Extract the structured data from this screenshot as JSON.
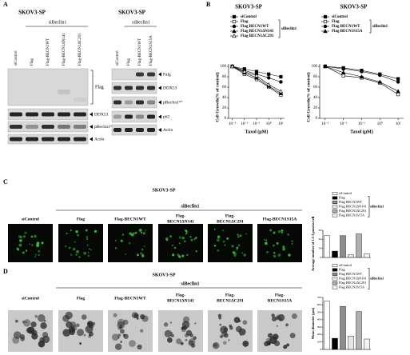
{
  "panel_labels": [
    "A",
    "B",
    "C",
    "D"
  ],
  "panel_a": {
    "blots": [
      {
        "title": "SKOV3-SP",
        "group": "siBeclin1",
        "lanes": [
          "siControl",
          "Flag",
          "Flag-BECN1WT",
          "Flag-BECN1ΔN141",
          "Flag-BECN1ΔC291"
        ],
        "rows": [
          "Flag",
          "DDX53",
          "pBeclin1ˢ¹⁵",
          "Actin"
        ]
      },
      {
        "title": "SKOV3-SP",
        "group": "siBeclin1",
        "lanes": [
          "siControl",
          "Flag",
          "Flag-BECN1WT",
          "Flag-BECN1S15A"
        ],
        "rows": [
          "Falg",
          "DDX53",
          "pBeclin1ˢ¹⁵",
          "p62",
          "Actin"
        ]
      }
    ]
  },
  "panel_c": {
    "title": "SKOV3-SP",
    "group": "siBeclin1",
    "images": [
      [
        "siControl"
      ],
      [
        "Flag"
      ],
      [
        "Flag-BECN1WT"
      ],
      [
        "Flag-",
        "BECN1ΔN141"
      ],
      [
        "Flag-",
        "BECN1ΔC291"
      ],
      [
        "Flag-BECN1S15A"
      ]
    ]
  },
  "panel_d": {
    "title": "SKOV3-SP",
    "group": "siBeclin1",
    "images": [
      [
        "siControl"
      ],
      [
        "Flag"
      ],
      [
        "Flag-BECN1WT"
      ],
      [
        "Flag-",
        "BECN1ΔN141"
      ],
      [
        "Flag-",
        "BECN1ΔC291"
      ],
      [
        "Flag-",
        "BECN1S15A"
      ]
    ]
  },
  "chart_data": [
    {
      "type": "line",
      "title": "SKOV3-SP",
      "xscale": "log",
      "x": [
        0.001,
        0.01,
        0.1,
        1,
        10
      ],
      "xlim": [
        0.0005,
        20
      ],
      "xticks": [
        {
          "value": 0.001,
          "label": "10⁻³"
        },
        {
          "value": 0.01,
          "label": "10⁻²"
        },
        {
          "value": 0.1,
          "label": "10⁻¹"
        },
        {
          "value": 1,
          "label": "10⁰"
        },
        {
          "value": 10,
          "label": "10¹"
        }
      ],
      "ylim": [
        0,
        100
      ],
      "yticks": [
        0,
        20,
        40,
        60,
        80,
        100
      ],
      "xlabel": "Taxol (μM)",
      "ylabel": "Cell Growth(% of control)",
      "legend_group": "siBeclin1",
      "series": [
        {
          "name": "siControl",
          "marker": "square",
          "filled": true,
          "color": "#000000",
          "values": [
            100,
            95,
            90,
            85,
            80
          ]
        },
        {
          "name": "Flag",
          "marker": "square",
          "filled": false,
          "color": "#000000",
          "values": [
            100,
            85,
            75,
            60,
            45
          ]
        },
        {
          "name": "Flag BECN1WT",
          "marker": "circle",
          "filled": true,
          "color": "#000000",
          "values": [
            100,
            92,
            85,
            78,
            70
          ]
        },
        {
          "name": "Flag BECN1ΔN141",
          "marker": "triangle",
          "filled": true,
          "color": "#000000",
          "values": [
            100,
            88,
            78,
            62,
            48
          ]
        },
        {
          "name": "Flag BECN1ΔC291",
          "marker": "triangle",
          "filled": false,
          "color": "#000000",
          "values": [
            100,
            90,
            82,
            65,
            52
          ]
        }
      ]
    },
    {
      "type": "line",
      "title": "SKOV3-SP",
      "xscale": "log",
      "x": [
        0.001,
        0.01,
        0.1,
        1,
        10
      ],
      "xlim": [
        0.0005,
        20
      ],
      "xticks": [
        {
          "value": 0.001,
          "label": "10⁻³"
        },
        {
          "value": 0.01,
          "label": "10⁻²"
        },
        {
          "value": 0.1,
          "label": "10⁻¹"
        },
        {
          "value": 1,
          "label": "10⁰"
        },
        {
          "value": 10,
          "label": "10¹"
        }
      ],
      "ylim": [
        0,
        100
      ],
      "yticks": [
        0,
        20,
        40,
        60,
        80,
        100
      ],
      "xlabel": "Taxol (μM)",
      "ylabel": "Cell Growth(% of control)",
      "legend_group": "siBeclin1",
      "series": [
        {
          "name": "siControl",
          "marker": "square",
          "filled": true,
          "color": "#000000",
          "values": [
            100,
            97,
            92,
            85,
            76
          ]
        },
        {
          "name": "Flag",
          "marker": "square",
          "filled": false,
          "color": "#000000",
          "values": [
            100,
            82,
            78,
            68,
            46
          ]
        },
        {
          "name": "Flag BECN1WT",
          "marker": "circle",
          "filled": true,
          "color": "#000000",
          "values": [
            100,
            95,
            90,
            83,
            70
          ]
        },
        {
          "name": "Flag BECN1S15A",
          "marker": "triangle",
          "filled": true,
          "color": "#000000",
          "values": [
            100,
            88,
            80,
            70,
            52
          ]
        }
      ]
    },
    {
      "type": "bar",
      "ylabel": "Average number of LC3 puncta/cell",
      "legend_group": "siBeclin1",
      "categories": [
        "siControl",
        "Flag",
        "Flag BECN1WT",
        "Flag BECN1ΔN141",
        "Flag BECN1ΔC291",
        "Flag BECN1S15A"
      ],
      "values": [
        24,
        7,
        24,
        3,
        26,
        4
      ],
      "colors": [
        "#ffffff",
        "#000000",
        "#8c8c8c",
        "#e6e6e6",
        "#b0b0b0",
        "#f2f2f2"
      ],
      "ylim": [
        0,
        30
      ],
      "yticks": [
        0,
        10,
        20,
        30
      ]
    },
    {
      "type": "bar",
      "ylabel": "Mean diameter (μm)",
      "legend_group": "siBeclin1",
      "categories": [
        "siControl",
        "Flag",
        "Flag BECN1WT",
        "Flag BECN1ΔN141",
        "Flag BECN1ΔC291",
        "Flag BECN1S15A"
      ],
      "values": [
        650,
        150,
        580,
        180,
        510,
        140
      ],
      "colors": [
        "#ffffff",
        "#000000",
        "#8c8c8c",
        "#e6e6e6",
        "#b0b0b0",
        "#f2f2f2"
      ],
      "ylim": [
        0,
        700
      ],
      "yticks": [
        0,
        100,
        200,
        300,
        400,
        500,
        600,
        700
      ]
    }
  ]
}
